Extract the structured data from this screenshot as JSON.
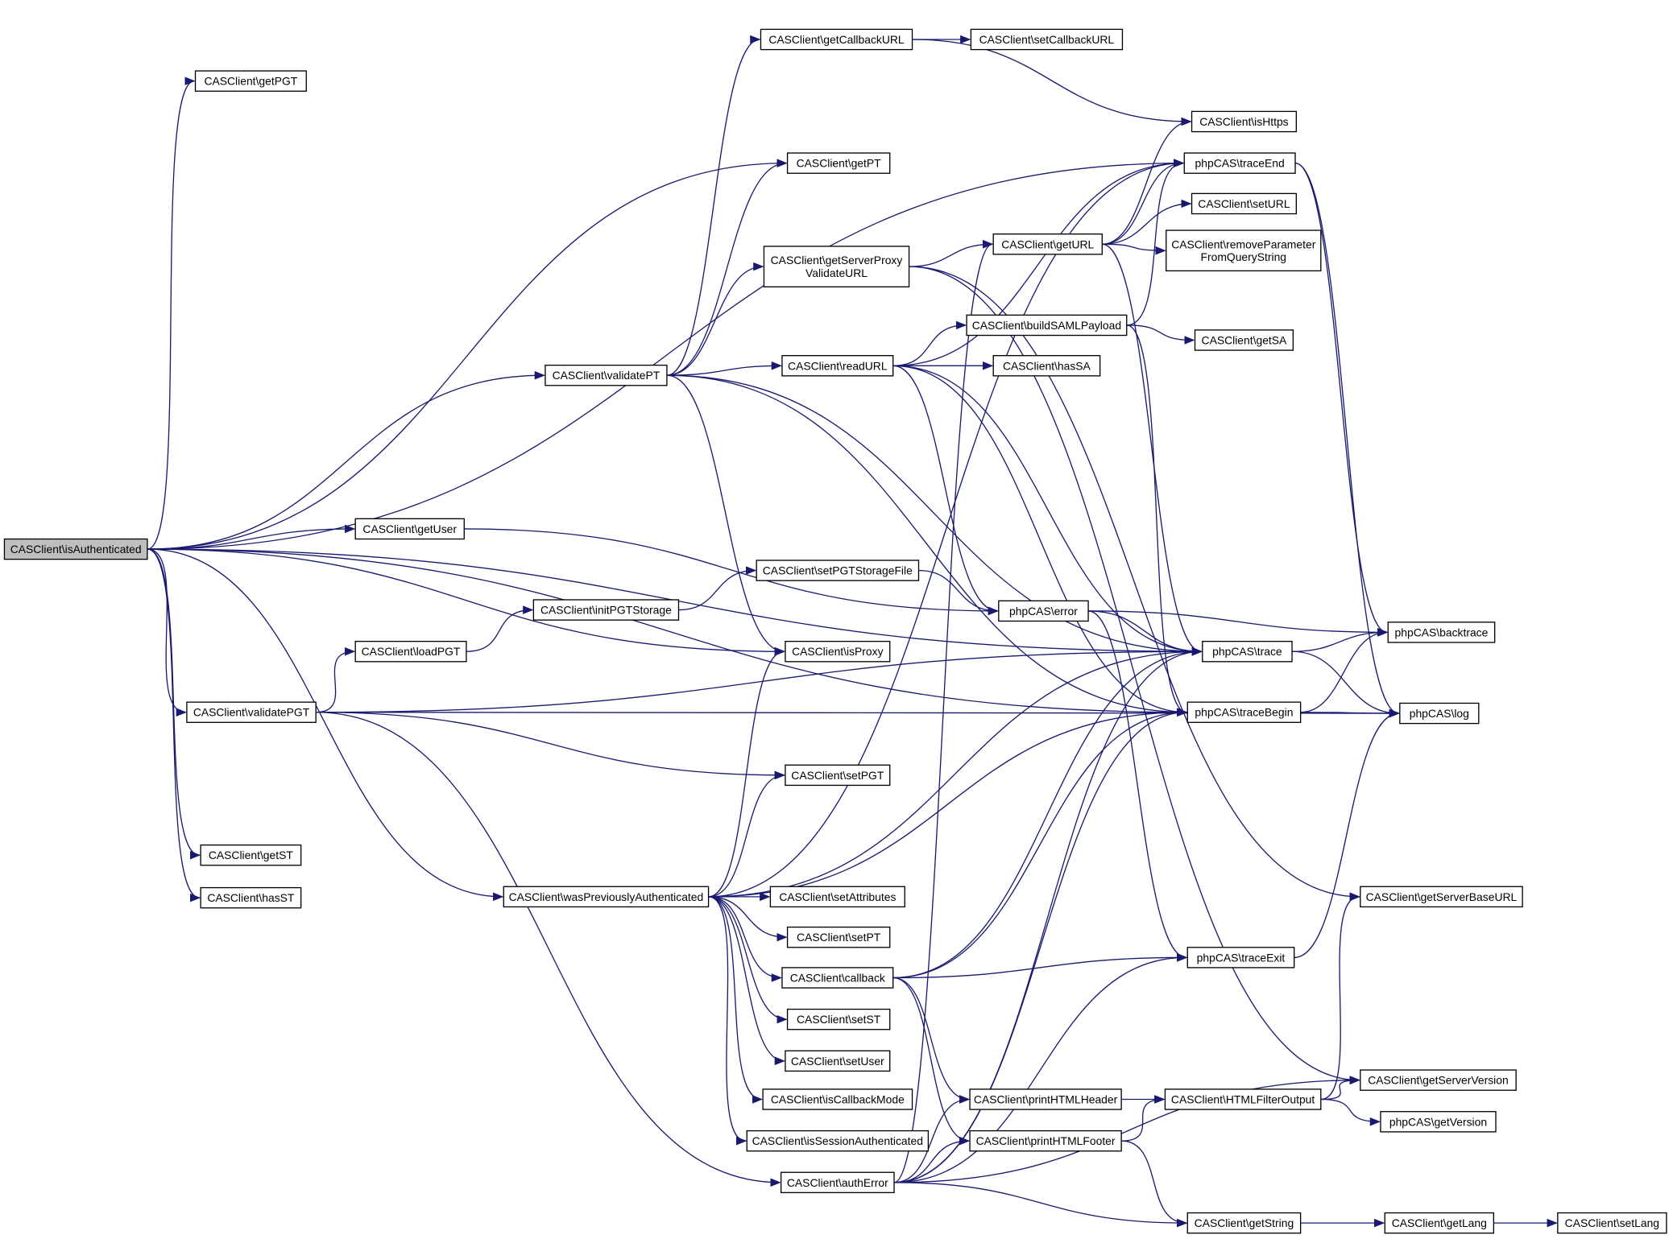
{
  "graph": {
    "type": "call-graph",
    "root": "isAuthenticated",
    "colors": {
      "edge": "#191970",
      "root_fill": "#bfbfbf",
      "node_fill": "#ffffff",
      "border": "#000000"
    },
    "nodes": [
      {
        "id": "isAuthenticated",
        "label": [
          "CASClient\\isAuthenticated"
        ]
      },
      {
        "id": "getPGT",
        "label": [
          "CASClient\\getPGT"
        ]
      },
      {
        "id": "getST",
        "label": [
          "CASClient\\getST"
        ]
      },
      {
        "id": "hasST",
        "label": [
          "CASClient\\hasST"
        ]
      },
      {
        "id": "validatePT",
        "label": [
          "CASClient\\validatePT"
        ]
      },
      {
        "id": "getUser",
        "label": [
          "CASClient\\getUser"
        ]
      },
      {
        "id": "validatePGT",
        "label": [
          "CASClient\\validatePGT"
        ]
      },
      {
        "id": "loadPGT",
        "label": [
          "CASClient\\loadPGT"
        ]
      },
      {
        "id": "initPGTStorage",
        "label": [
          "CASClient\\initPGTStorage"
        ]
      },
      {
        "id": "wasPreviouslyAuthenticated",
        "label": [
          "CASClient\\wasPreviouslyAuthenticated"
        ]
      },
      {
        "id": "getCallbackURL",
        "label": [
          "CASClient\\getCallbackURL"
        ]
      },
      {
        "id": "setCallbackURL",
        "label": [
          "CASClient\\setCallbackURL"
        ]
      },
      {
        "id": "getPT",
        "label": [
          "CASClient\\getPT"
        ]
      },
      {
        "id": "getServerProxyValidateURL",
        "label": [
          "CASClient\\getServerProxy",
          "ValidateURL"
        ]
      },
      {
        "id": "readURL",
        "label": [
          "CASClient\\readURL"
        ]
      },
      {
        "id": "setPGTStorageFile",
        "label": [
          "CASClient\\setPGTStorageFile"
        ]
      },
      {
        "id": "isProxy",
        "label": [
          "CASClient\\isProxy"
        ]
      },
      {
        "id": "setPGT",
        "label": [
          "CASClient\\setPGT"
        ]
      },
      {
        "id": "setAttributes",
        "label": [
          "CASClient\\setAttributes"
        ]
      },
      {
        "id": "setPT",
        "label": [
          "CASClient\\setPT"
        ]
      },
      {
        "id": "callback",
        "label": [
          "CASClient\\callback"
        ]
      },
      {
        "id": "setST",
        "label": [
          "CASClient\\setST"
        ]
      },
      {
        "id": "setUser",
        "label": [
          "CASClient\\setUser"
        ]
      },
      {
        "id": "isCallbackMode",
        "label": [
          "CASClient\\isCallbackMode"
        ]
      },
      {
        "id": "isSessionAuthenticated",
        "label": [
          "CASClient\\isSessionAuthenticated"
        ]
      },
      {
        "id": "authError",
        "label": [
          "CASClient\\authError"
        ]
      },
      {
        "id": "isHttps",
        "label": [
          "CASClient\\isHttps"
        ]
      },
      {
        "id": "traceEnd",
        "label": [
          "phpCAS\\traceEnd"
        ]
      },
      {
        "id": "setURL",
        "label": [
          "CASClient\\setURL"
        ]
      },
      {
        "id": "getURL",
        "label": [
          "CASClient\\getURL"
        ]
      },
      {
        "id": "removeParameterFromQueryString",
        "label": [
          "CASClient\\removeParameter",
          "FromQueryString"
        ]
      },
      {
        "id": "buildSAMLPayload",
        "label": [
          "CASClient\\buildSAMLPayload"
        ]
      },
      {
        "id": "getSA",
        "label": [
          "CASClient\\getSA"
        ]
      },
      {
        "id": "hasSA",
        "label": [
          "CASClient\\hasSA"
        ]
      },
      {
        "id": "error",
        "label": [
          "phpCAS\\error"
        ]
      },
      {
        "id": "trace",
        "label": [
          "phpCAS\\trace"
        ]
      },
      {
        "id": "traceBegin",
        "label": [
          "phpCAS\\traceBegin"
        ]
      },
      {
        "id": "backtrace",
        "label": [
          "phpCAS\\backtrace"
        ]
      },
      {
        "id": "log",
        "label": [
          "phpCAS\\log"
        ]
      },
      {
        "id": "getServerBaseURL",
        "label": [
          "CASClient\\getServerBaseURL"
        ]
      },
      {
        "id": "traceExit",
        "label": [
          "phpCAS\\traceExit"
        ]
      },
      {
        "id": "printHTMLHeader",
        "label": [
          "CASClient\\printHTMLHeader"
        ]
      },
      {
        "id": "printHTMLFooter",
        "label": [
          "CASClient\\printHTMLFooter"
        ]
      },
      {
        "id": "HTMLFilterOutput",
        "label": [
          "CASClient\\HTMLFilterOutput"
        ]
      },
      {
        "id": "getServerVersion",
        "label": [
          "CASClient\\getServerVersion"
        ]
      },
      {
        "id": "getVersion",
        "label": [
          "phpCAS\\getVersion"
        ]
      },
      {
        "id": "getString",
        "label": [
          "CASClient\\getString"
        ]
      },
      {
        "id": "getLang",
        "label": [
          "CASClient\\getLang"
        ]
      },
      {
        "id": "setLang",
        "label": [
          "CASClient\\setLang"
        ]
      }
    ],
    "edges": [
      [
        "isAuthenticated",
        "getPGT"
      ],
      [
        "isAuthenticated",
        "traceEnd"
      ],
      [
        "isAuthenticated",
        "getPT"
      ],
      [
        "isAuthenticated",
        "validatePT"
      ],
      [
        "isAuthenticated",
        "trace"
      ],
      [
        "isAuthenticated",
        "getUser"
      ],
      [
        "isAuthenticated",
        "traceBegin"
      ],
      [
        "isAuthenticated",
        "isProxy"
      ],
      [
        "isAuthenticated",
        "validatePGT"
      ],
      [
        "isAuthenticated",
        "getST"
      ],
      [
        "isAuthenticated",
        "hasST"
      ],
      [
        "isAuthenticated",
        "wasPreviouslyAuthenticated"
      ],
      [
        "validatePT",
        "getCallbackURL"
      ],
      [
        "validatePT",
        "getPT"
      ],
      [
        "validatePT",
        "getServerProxyValidateURL"
      ],
      [
        "validatePT",
        "readURL"
      ],
      [
        "validatePT",
        "isProxy"
      ],
      [
        "validatePT",
        "trace"
      ],
      [
        "validatePT",
        "traceBegin"
      ],
      [
        "getCallbackURL",
        "setCallbackURL"
      ],
      [
        "getCallbackURL",
        "isHttps"
      ],
      [
        "getServerProxyValidateURL",
        "getURL"
      ],
      [
        "getServerProxyValidateURL",
        "getServerBaseURL"
      ],
      [
        "getServerProxyValidateURL",
        "getServerVersion"
      ],
      [
        "getURL",
        "isHttps"
      ],
      [
        "getURL",
        "traceEnd"
      ],
      [
        "getURL",
        "setURL"
      ],
      [
        "getURL",
        "removeParameterFromQueryString"
      ],
      [
        "getURL",
        "trace"
      ],
      [
        "readURL",
        "traceEnd"
      ],
      [
        "readURL",
        "buildSAMLPayload"
      ],
      [
        "readURL",
        "hasSA"
      ],
      [
        "readURL",
        "trace"
      ],
      [
        "readURL",
        "traceBegin"
      ],
      [
        "readURL",
        "error"
      ],
      [
        "buildSAMLPayload",
        "getSA"
      ],
      [
        "buildSAMLPayload",
        "traceEnd"
      ],
      [
        "buildSAMLPayload",
        "traceBegin"
      ],
      [
        "getUser",
        "error"
      ],
      [
        "loadPGT",
        "initPGTStorage"
      ],
      [
        "initPGTStorage",
        "setPGTStorageFile"
      ],
      [
        "setPGTStorageFile",
        "error"
      ],
      [
        "validatePGT",
        "loadPGT"
      ],
      [
        "validatePGT",
        "trace"
      ],
      [
        "validatePGT",
        "log"
      ],
      [
        "validatePGT",
        "setPGT"
      ],
      [
        "validatePGT",
        "authError"
      ],
      [
        "error",
        "backtrace"
      ],
      [
        "error",
        "trace"
      ],
      [
        "error",
        "traceExit"
      ],
      [
        "trace",
        "backtrace"
      ],
      [
        "trace",
        "log"
      ],
      [
        "traceBegin",
        "backtrace"
      ],
      [
        "traceBegin",
        "log"
      ],
      [
        "traceExit",
        "log"
      ],
      [
        "traceEnd",
        "backtrace"
      ],
      [
        "traceEnd",
        "log"
      ],
      [
        "wasPreviouslyAuthenticated",
        "traceEnd"
      ],
      [
        "wasPreviouslyAuthenticated",
        "isProxy"
      ],
      [
        "wasPreviouslyAuthenticated",
        "setPGT"
      ],
      [
        "wasPreviouslyAuthenticated",
        "trace"
      ],
      [
        "wasPreviouslyAuthenticated",
        "traceBegin"
      ],
      [
        "wasPreviouslyAuthenticated",
        "setAttributes"
      ],
      [
        "wasPreviouslyAuthenticated",
        "setPT"
      ],
      [
        "wasPreviouslyAuthenticated",
        "callback"
      ],
      [
        "wasPreviouslyAuthenticated",
        "setST"
      ],
      [
        "wasPreviouslyAuthenticated",
        "setUser"
      ],
      [
        "wasPreviouslyAuthenticated",
        "isCallbackMode"
      ],
      [
        "wasPreviouslyAuthenticated",
        "isSessionAuthenticated"
      ],
      [
        "callback",
        "trace"
      ],
      [
        "callback",
        "traceBegin"
      ],
      [
        "callback",
        "traceExit"
      ],
      [
        "callback",
        "printHTMLHeader"
      ],
      [
        "callback",
        "printHTMLFooter"
      ],
      [
        "authError",
        "getURL"
      ],
      [
        "authError",
        "trace"
      ],
      [
        "authError",
        "traceBegin"
      ],
      [
        "authError",
        "traceExit"
      ],
      [
        "authError",
        "printHTMLHeader"
      ],
      [
        "authError",
        "printHTMLFooter"
      ],
      [
        "authError",
        "getServerVersion"
      ],
      [
        "authError",
        "getString"
      ],
      [
        "printHTMLHeader",
        "HTMLFilterOutput"
      ],
      [
        "printHTMLFooter",
        "HTMLFilterOutput"
      ],
      [
        "printHTMLFooter",
        "getString"
      ],
      [
        "HTMLFilterOutput",
        "getServerBaseURL"
      ],
      [
        "HTMLFilterOutput",
        "getServerVersion"
      ],
      [
        "HTMLFilterOutput",
        "getVersion"
      ],
      [
        "getString",
        "getLang"
      ],
      [
        "getLang",
        "setLang"
      ]
    ]
  }
}
